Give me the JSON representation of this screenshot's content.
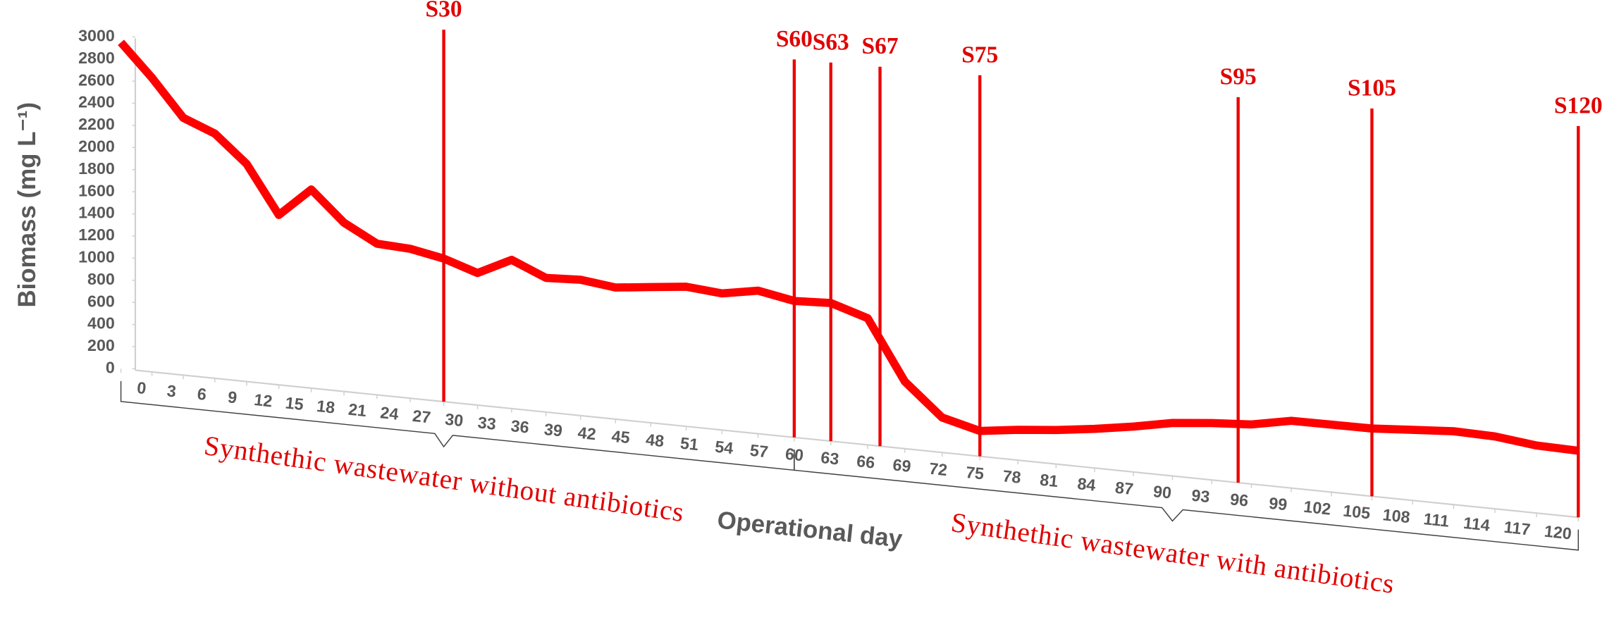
{
  "chart_data": {
    "type": "line",
    "x_label": "Operational day",
    "y_label": "Biomass (mg L⁻¹)",
    "x": [
      0,
      3,
      6,
      9,
      12,
      15,
      18,
      21,
      24,
      27,
      30,
      33,
      36,
      39,
      42,
      45,
      48,
      51,
      54,
      57,
      60,
      63,
      66,
      69,
      72,
      75,
      78,
      81,
      84,
      87,
      90,
      93,
      96,
      99,
      102,
      105,
      108,
      111,
      114,
      117,
      120
    ],
    "values": [
      2950,
      2650,
      2310,
      2190,
      1940,
      1510,
      1760,
      1490,
      1330,
      1310,
      1250,
      1150,
      1290,
      1160,
      1170,
      1130,
      1160,
      1190,
      1160,
      1210,
      1150,
      1160,
      1060,
      560,
      290,
      210,
      250,
      280,
      320,
      370,
      430,
      460,
      480,
      540,
      540,
      540,
      560,
      580,
      570,
      530,
      520
    ],
    "color": "#ff0000",
    "xlim": [
      0,
      120
    ],
    "ylim": [
      0,
      3000
    ],
    "xticks": [
      0,
      3,
      6,
      9,
      12,
      15,
      18,
      21,
      24,
      27,
      30,
      33,
      36,
      39,
      42,
      45,
      48,
      51,
      54,
      57,
      60,
      63,
      66,
      69,
      72,
      75,
      78,
      81,
      84,
      87,
      90,
      93,
      96,
      99,
      102,
      105,
      108,
      111,
      114,
      117,
      120
    ],
    "yticks": [
      0,
      200,
      400,
      600,
      800,
      1000,
      1200,
      1400,
      1600,
      1800,
      2000,
      2200,
      2400,
      2600,
      2800,
      3000
    ],
    "markers": [
      {
        "label": "S30",
        "x": 30
      },
      {
        "label": "S60",
        "x": 60
      },
      {
        "label": "S63",
        "x": 63
      },
      {
        "label": "S67",
        "x": 67
      },
      {
        "label": "S75",
        "x": 75
      },
      {
        "label": "S95",
        "x": 95
      },
      {
        "label": "S105",
        "x": 105
      },
      {
        "label": "S120",
        "x": 120
      }
    ],
    "annotations": [
      {
        "text": "Synthethic wastewater without antibiotics",
        "x_range": [
          0,
          60
        ]
      },
      {
        "text": "Synthethic wastewater with antibiotics",
        "x_range": [
          60,
          120
        ]
      }
    ]
  }
}
